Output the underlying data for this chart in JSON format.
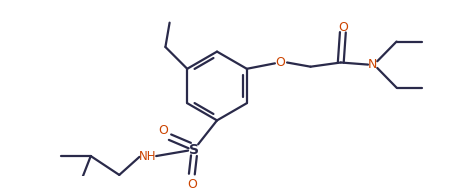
{
  "line_color": "#2a2a4a",
  "heteroatom_color": "#cc4400",
  "bg_color": "#ffffff",
  "bond_lw": 1.6,
  "figsize": [
    4.55,
    1.9
  ],
  "dpi": 100,
  "xlim": [
    0,
    10
  ],
  "ylim": [
    0,
    4.2
  ]
}
